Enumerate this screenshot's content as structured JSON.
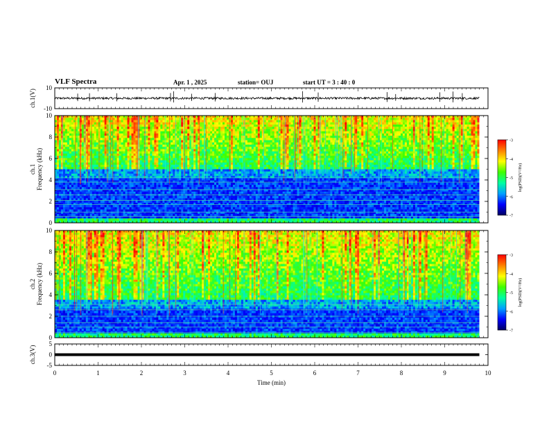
{
  "header": {
    "title": "VLF Spectra",
    "date": "Apr. 1 , 2025",
    "station": "station= OUJ",
    "start": "start UT = 3 : 40 : 0"
  },
  "chart_data": [
    {
      "type": "line",
      "ylabel": "ch.1(V)",
      "ylim": [
        -10,
        10
      ],
      "yticks": [
        "10",
        "-10"
      ],
      "trace_level": 0.0,
      "trace_amplitude_approx": 1.5
    },
    {
      "type": "heatmap",
      "ylabel_top": "ch.1",
      "ylabel": "Frequency (kHz)",
      "ylim": [
        0,
        10
      ],
      "yticks": [
        "0",
        "2",
        "4",
        "6",
        "8",
        "10"
      ],
      "colorbar_label": "log(PSD)(V²/Hz)",
      "colorbar_range": [
        -7,
        -3
      ],
      "colorbar_ticks": [
        "-3",
        "-4",
        "-5",
        "-6",
        "-7"
      ],
      "noise_floor_kHz": 5.0,
      "narrowband_lines_kHz": [
        0.6,
        1.0,
        1.7,
        2.1,
        2.6,
        3.1,
        3.8,
        4.2
      ]
    },
    {
      "type": "heatmap",
      "ylabel_top": "ch.2",
      "ylabel": "Frequency (kHz)",
      "ylim": [
        0,
        10
      ],
      "yticks": [
        "0",
        "2",
        "4",
        "6",
        "8",
        "10"
      ],
      "colorbar_label": "log(PSD)(V²/Hz)",
      "colorbar_range": [
        -7,
        -3
      ],
      "colorbar_ticks": [
        "-3",
        "-4",
        "-5",
        "-6",
        "-7"
      ],
      "noise_floor_kHz": 3.5,
      "narrowband_lines_kHz": [
        0.5,
        1.0,
        1.4,
        2.0,
        2.6,
        3.1
      ]
    },
    {
      "type": "line",
      "ylabel": "ch.3(V)",
      "ylim": [
        -5,
        5
      ],
      "yticks": [
        "5",
        "0",
        "-5"
      ],
      "trace_level": 0.0
    }
  ],
  "xaxis": {
    "label": "Time (min)",
    "range": [
      0,
      10
    ],
    "ticks": [
      "0",
      "1",
      "2",
      "3",
      "4",
      "5",
      "6",
      "7",
      "8",
      "9",
      "10"
    ],
    "data_end_min": 9.8
  },
  "colors": {
    "colormap": [
      "#000060",
      "#0000ff",
      "#00a0ff",
      "#00ffa0",
      "#40ff00",
      "#ffff00",
      "#ff8000",
      "#ff0000",
      "#ffffff"
    ]
  }
}
